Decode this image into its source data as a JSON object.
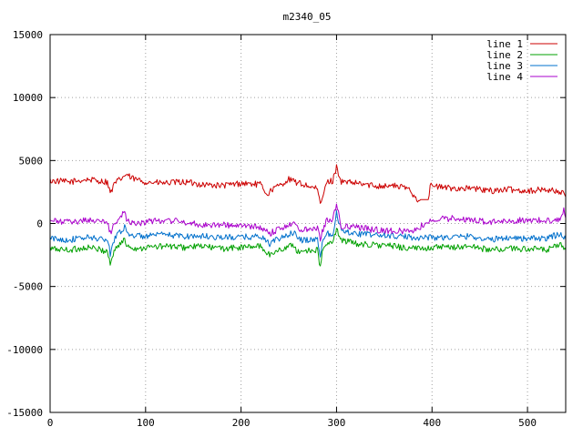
{
  "chart_data": {
    "type": "line",
    "title": "m2340_05",
    "xlabel": "",
    "ylabel": "",
    "xlim": [
      0,
      540
    ],
    "ylim": [
      -15000,
      15000
    ],
    "x_ticks": [
      0,
      100,
      200,
      300,
      400,
      500
    ],
    "y_ticks": [
      -15000,
      -10000,
      -5000,
      0,
      5000,
      10000,
      15000
    ],
    "grid": true,
    "legend_position": "top-right",
    "series": [
      {
        "name": "line 1",
        "color": "#cc0000",
        "x": [
          0,
          20,
          40,
          60,
          63,
          68,
          80,
          85,
          100,
          120,
          140,
          160,
          180,
          200,
          220,
          228,
          232,
          240,
          250,
          260,
          270,
          280,
          283,
          290,
          296,
          300,
          305,
          320,
          340,
          360,
          375,
          385,
          390,
          396,
          398,
          420,
          440,
          460,
          480,
          500,
          520,
          535,
          540
        ],
        "values": [
          3400,
          3300,
          3500,
          3300,
          2400,
          3200,
          3900,
          3600,
          3300,
          3200,
          3300,
          3100,
          3000,
          3200,
          3100,
          2300,
          2700,
          3000,
          3500,
          3200,
          3000,
          2700,
          1500,
          3300,
          3400,
          4500,
          3300,
          3200,
          3000,
          3000,
          2800,
          1900,
          1900,
          1900,
          3000,
          2800,
          2800,
          2600,
          2700,
          2600,
          2700,
          2500,
          2200
        ]
      },
      {
        "name": "line 2",
        "color": "#00a000",
        "x": [
          0,
          20,
          40,
          60,
          63,
          68,
          78,
          80,
          90,
          100,
          120,
          140,
          160,
          180,
          200,
          220,
          230,
          240,
          255,
          260,
          270,
          280,
          283,
          285,
          290,
          296,
          300,
          305,
          320,
          340,
          360,
          380,
          400,
          420,
          440,
          460,
          480,
          500,
          520,
          535,
          540
        ],
        "values": [
          -2000,
          -2100,
          -1900,
          -2200,
          -3200,
          -2000,
          -1300,
          -1700,
          -2000,
          -1900,
          -1800,
          -1900,
          -1800,
          -2000,
          -1900,
          -1800,
          -2500,
          -2100,
          -1700,
          -2300,
          -2100,
          -2100,
          -3600,
          -2200,
          -1600,
          -1600,
          -400,
          -1300,
          -1600,
          -1700,
          -1800,
          -2000,
          -1900,
          -1900,
          -1800,
          -2100,
          -2000,
          -2000,
          -2100,
          -1700,
          -2000
        ]
      },
      {
        "name": "line 3",
        "color": "#0070cc",
        "x": [
          0,
          20,
          40,
          60,
          63,
          68,
          78,
          80,
          90,
          100,
          120,
          140,
          160,
          180,
          200,
          220,
          230,
          240,
          255,
          260,
          270,
          280,
          283,
          285,
          290,
          296,
          300,
          305,
          320,
          340,
          360,
          380,
          400,
          420,
          440,
          460,
          480,
          500,
          520,
          535,
          540
        ],
        "values": [
          -1200,
          -1300,
          -1100,
          -1300,
          -2400,
          -1000,
          -300,
          -700,
          -1000,
          -1000,
          -900,
          -1000,
          -1000,
          -1100,
          -1100,
          -1000,
          -1600,
          -1200,
          -700,
          -1300,
          -1300,
          -1200,
          -2800,
          -1300,
          -800,
          -800,
          800,
          -500,
          -800,
          -900,
          -1000,
          -1100,
          -1100,
          -1100,
          -1000,
          -1300,
          -1100,
          -1200,
          -1200,
          -800,
          -1200
        ]
      },
      {
        "name": "line 4",
        "color": "#aa00cc",
        "x": [
          0,
          20,
          40,
          60,
          63,
          68,
          78,
          80,
          90,
          100,
          120,
          140,
          160,
          180,
          200,
          220,
          230,
          240,
          255,
          260,
          270,
          280,
          283,
          285,
          290,
          296,
          300,
          305,
          320,
          340,
          360,
          380,
          400,
          420,
          440,
          460,
          480,
          500,
          520,
          535,
          538,
          540
        ],
        "values": [
          200,
          100,
          300,
          100,
          -800,
          100,
          900,
          300,
          0,
          100,
          300,
          100,
          -100,
          -100,
          -200,
          -300,
          -800,
          -400,
          100,
          -500,
          -400,
          -300,
          -1200,
          -600,
          300,
          300,
          1500,
          -200,
          -300,
          -500,
          -600,
          -600,
          300,
          400,
          300,
          100,
          200,
          300,
          200,
          400,
          1300,
          400
        ]
      }
    ]
  }
}
